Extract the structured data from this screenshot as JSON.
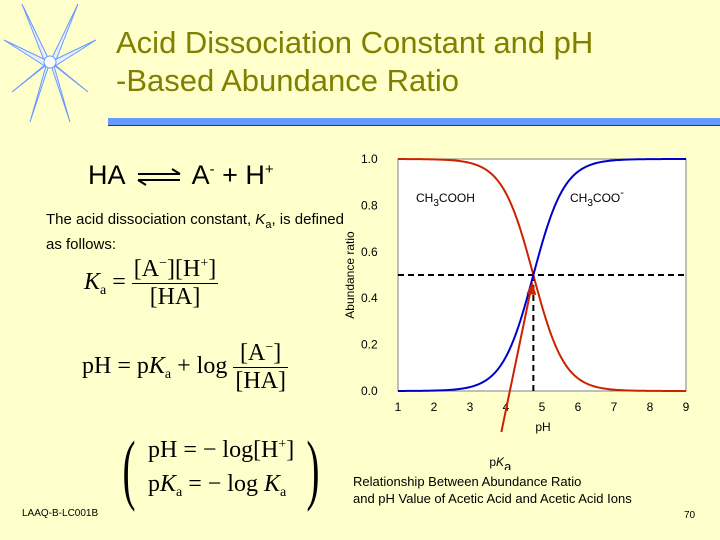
{
  "slide": {
    "title_line1": "Acid Dissociation Constant and pH",
    "title_line2": "-Based Abundance Ratio",
    "equilibrium": {
      "ha": "HA",
      "a": "A",
      "a_charge": "-",
      "plus1": "+",
      "h": "H",
      "h_charge": "+"
    },
    "description_prefix": "The acid dissociation constant, ",
    "description_k": "K",
    "description_sub": "a",
    "description_suffix": ", is defined as follows:",
    "footer": "LAAQ-B-LC001B",
    "page_number": "70",
    "caption_line1": "Relationship Between Abundance Ratio",
    "caption_line2": "and pH Value of Acetic Acid and Acetic Acid Ions"
  },
  "formulas": {
    "ka_def": {
      "lhs_k": "K",
      "lhs_sub": "a",
      "eq": "=",
      "num": "[A",
      "num_sup1": "−",
      "num_mid": "][H",
      "num_sup2": "+",
      "num_end": "]",
      "den": "[HA]"
    },
    "henderson": {
      "lhs": "pH",
      "eq": "= p",
      "k": "K",
      "sub": "a",
      "plus": "+ log",
      "num": "[A",
      "num_sup": "−",
      "num_end": "]",
      "den": "[HA]"
    },
    "ph_def": {
      "lhs": "pH",
      "rhs": "= − log[H",
      "sup": "+",
      "end": "]"
    },
    "pka_def": {
      "lhs_p": "p",
      "lhs_k": "K",
      "lhs_sub": "a",
      "rhs": "= − log",
      "rhs_k": "K",
      "rhs_sub": "a"
    }
  },
  "chart_data": {
    "type": "line",
    "ylabel": "Abundance ratio",
    "xlabel": "pH",
    "xlim": [
      1,
      9
    ],
    "ylim": [
      0,
      1.0
    ],
    "x_ticks": [
      1,
      2,
      3,
      4,
      5,
      6,
      7,
      8,
      9
    ],
    "y_ticks": [
      "0.0",
      "0.2",
      "0.4",
      "0.6",
      "0.8",
      "1.0"
    ],
    "pKa": 4.76,
    "pKa_label_p": "p",
    "pKa_label_k": "K",
    "pKa_label_sub": "a",
    "series": [
      {
        "name": "CH3COOH",
        "name_main": "CH",
        "name_sub": "3",
        "name_end": "COOH",
        "color": "#CC2200",
        "kind": "acid"
      },
      {
        "name": "CH3COO-",
        "name_main": "CH",
        "name_sub": "3",
        "name_end": "COO",
        "name_sup": "-",
        "color": "#0000CC",
        "kind": "base"
      }
    ],
    "grid": false,
    "crosshair_y": 0.5
  },
  "colors": {
    "background": "#FFFFCC",
    "title": "#808000",
    "rule": "#6699FF",
    "pka_arrow": "#CC2200"
  }
}
